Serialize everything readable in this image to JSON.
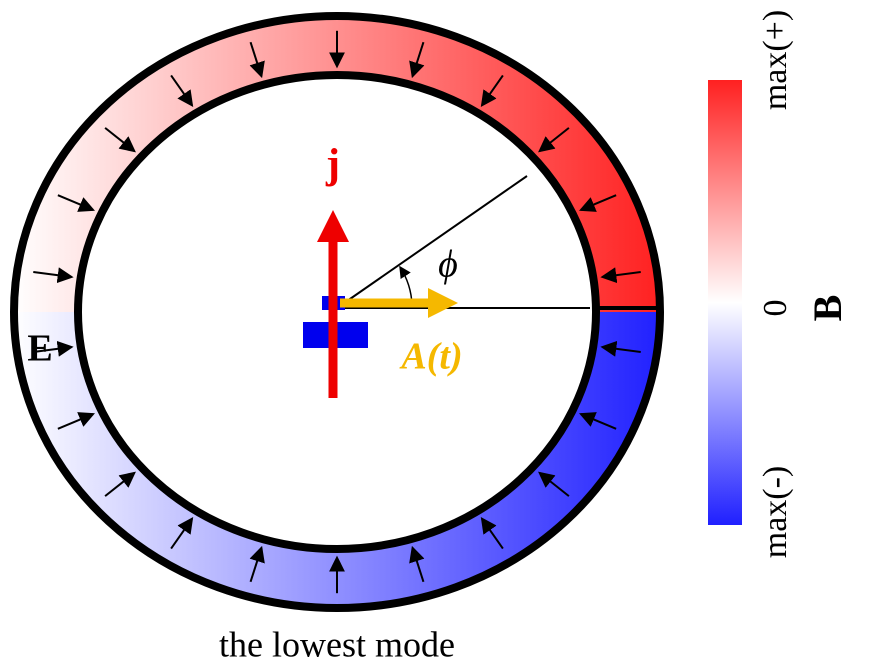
{
  "labels": {
    "current": "j",
    "field": "E",
    "angle": "ϕ",
    "potential": "A(t)"
  },
  "colorbar": {
    "title": "B",
    "top": "max(+)",
    "middle": "0",
    "bottom": "max(-)"
  },
  "caption": "the lowest mode"
}
